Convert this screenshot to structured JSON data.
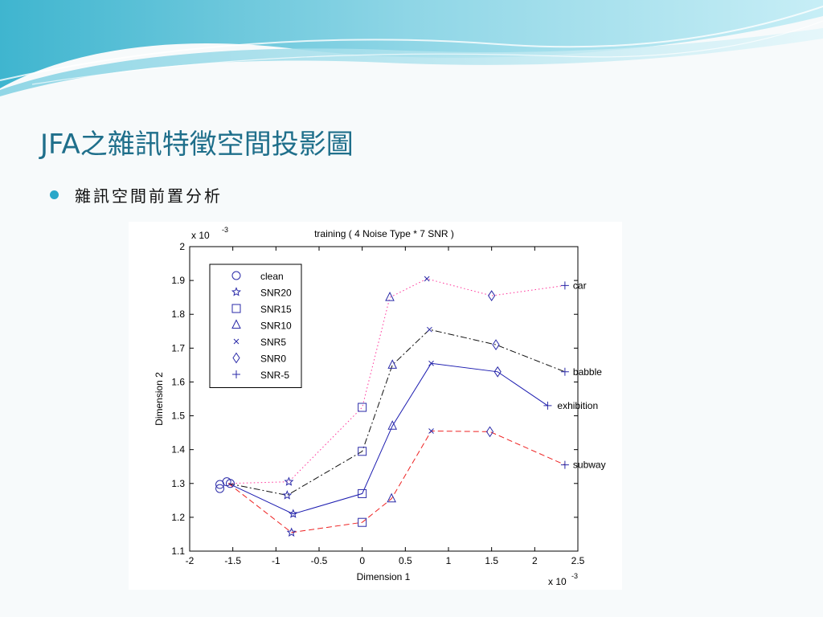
{
  "slide": {
    "title": "JFA之雜訊特徵空間投影圖",
    "bullet": "雜訊空間前置分析"
  },
  "colors": {
    "title": "#1f6f8b",
    "bullet": "#2aa7c9",
    "series_line": "#1c1cb0",
    "marker": "#2a2aa8"
  },
  "chart_data": {
    "type": "line",
    "title": "training ( 4 Noise Type * 7 SNR )",
    "xlabel": "Dimension 1",
    "ylabel": "Dimension 2",
    "x_exponent": "x 10",
    "x_exponent_power": "-3",
    "y_exponent": "x 10",
    "y_exponent_power": "-3",
    "xlim": [
      -2,
      2.5
    ],
    "ylim": [
      1.1,
      2.0
    ],
    "xticks": [
      -2,
      -1.5,
      -1,
      -0.5,
      0,
      0.5,
      1,
      1.5,
      2,
      2.5
    ],
    "xtick_labels": [
      "-2",
      "-1.5",
      "-1",
      "-0.5",
      "0",
      "0.5",
      "1",
      "1.5",
      "2",
      "2.5"
    ],
    "yticks": [
      1.1,
      1.2,
      1.3,
      1.4,
      1.5,
      1.6,
      1.7,
      1.8,
      1.9,
      2.0
    ],
    "ytick_labels": [
      "1.1",
      "1.2",
      "1.3",
      "1.4",
      "1.5",
      "1.6",
      "1.7",
      "1.8",
      "1.9",
      "2"
    ],
    "grid": false,
    "legend_position": "top-left",
    "markers": [
      {
        "name": "clean",
        "symbol": "circle"
      },
      {
        "name": "SNR20",
        "symbol": "star"
      },
      {
        "name": "SNR15",
        "symbol": "square"
      },
      {
        "name": "SNR10",
        "symbol": "triangle"
      },
      {
        "name": "SNR5",
        "symbol": "x"
      },
      {
        "name": "SNR0",
        "symbol": "diamond"
      },
      {
        "name": "SNR-5",
        "symbol": "plus"
      }
    ],
    "series": [
      {
        "name": "car",
        "color": "#ff3399",
        "dash": "dot",
        "points": [
          [
            -1.55,
            1.3
          ],
          [
            -0.85,
            1.305
          ],
          [
            0,
            1.525
          ],
          [
            0.32,
            1.85
          ],
          [
            0.75,
            1.905
          ],
          [
            1.5,
            1.855
          ],
          [
            2.35,
            1.885
          ]
        ]
      },
      {
        "name": "babble",
        "color": "#111111",
        "dash": "dashdot",
        "points": [
          [
            -1.55,
            1.3
          ],
          [
            -0.87,
            1.265
          ],
          [
            0,
            1.395
          ],
          [
            0.35,
            1.65
          ],
          [
            0.78,
            1.755
          ],
          [
            1.55,
            1.71
          ],
          [
            2.35,
            1.63
          ]
        ]
      },
      {
        "name": "exhibition",
        "color": "#1c1cb0",
        "dash": "solid",
        "points": [
          [
            -1.55,
            1.3
          ],
          [
            -0.8,
            1.21
          ],
          [
            0,
            1.27
          ],
          [
            0.35,
            1.47
          ],
          [
            0.8,
            1.655
          ],
          [
            1.57,
            1.63
          ],
          [
            2.15,
            1.53
          ]
        ]
      },
      {
        "name": "subway",
        "color": "#ee2222",
        "dash": "dash",
        "points": [
          [
            -1.55,
            1.3
          ],
          [
            -0.82,
            1.155
          ],
          [
            0,
            1.185
          ],
          [
            0.34,
            1.255
          ],
          [
            0.8,
            1.455
          ],
          [
            1.48,
            1.453
          ],
          [
            2.35,
            1.355
          ]
        ]
      }
    ],
    "extra_points": [
      {
        "marker": "circle",
        "x": -1.65,
        "y": 1.285
      },
      {
        "marker": "circle",
        "x": -1.65,
        "y": 1.297
      },
      {
        "marker": "circle",
        "x": -1.57,
        "y": 1.305
      },
      {
        "marker": "circle",
        "x": -1.53,
        "y": 1.3
      }
    ]
  }
}
